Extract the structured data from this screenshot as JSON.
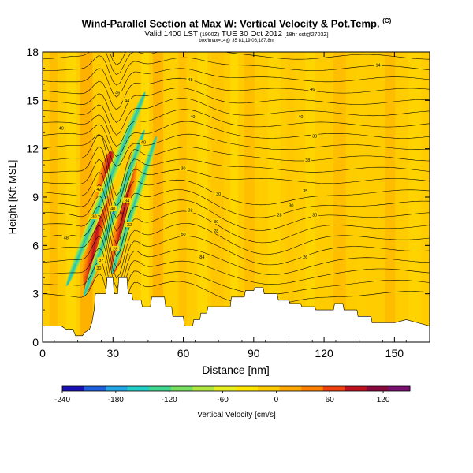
{
  "header": {
    "title": "Wind-Parallel Section at Max W: Vertical Velocity & Pot.Temp.",
    "title_mark": "(C)",
    "valid_main": "Valid 1400 LST",
    "valid_small1": "(1900Z)",
    "valid_date": "TUE 30 Oct 2012",
    "valid_small2": "[18hr cst@2703Z]",
    "line3": "box/lmax=14@ 35 81,19.06,187.8m"
  },
  "chart_data": {
    "type": "heatmap",
    "xlabel": "Distance [nm]",
    "ylabel": "Height [Kft MSL]",
    "xlim": [
      0,
      165
    ],
    "ylim": [
      0,
      18
    ],
    "xticks": [
      0,
      30,
      60,
      90,
      120,
      150
    ],
    "yticks": [
      0,
      3,
      6,
      9,
      12,
      15,
      18
    ],
    "colorbar": {
      "label": "Vertical Velocity [cm/s]",
      "ticks": [
        -240,
        -180,
        -120,
        -60,
        0,
        60,
        120
      ],
      "range": [
        -240,
        150
      ],
      "colors": [
        "#1a10b8",
        "#1e5fe0",
        "#22a6e8",
        "#20d0c8",
        "#40d890",
        "#78e060",
        "#b0e840",
        "#e8f020",
        "#ffe600",
        "#ffcc00",
        "#ffa800",
        "#ff8000",
        "#f04010",
        "#c01020",
        "#8a0a40",
        "#7a1070"
      ]
    },
    "terrain_kft": [
      [
        0,
        1.0
      ],
      [
        8,
        1.0
      ],
      [
        10,
        0.8
      ],
      [
        13,
        0.8
      ],
      [
        14,
        0.4
      ],
      [
        17,
        0.4
      ],
      [
        18,
        0.6
      ],
      [
        20,
        0.8
      ],
      [
        21,
        1.2
      ],
      [
        22,
        2.0
      ],
      [
        22.5,
        3.0
      ],
      [
        27,
        3.0
      ],
      [
        27.5,
        4.0
      ],
      [
        30,
        4.0
      ],
      [
        30.5,
        3.0
      ],
      [
        32,
        3.0
      ],
      [
        32.5,
        4.0
      ],
      [
        36,
        4.0
      ],
      [
        36.5,
        3.0
      ],
      [
        38,
        3.0
      ],
      [
        38.5,
        2.6
      ],
      [
        42,
        2.6
      ],
      [
        42.5,
        2.2
      ],
      [
        46,
        2.2
      ],
      [
        46.5,
        2.8
      ],
      [
        52,
        2.8
      ],
      [
        52.5,
        2.2
      ],
      [
        55,
        2.2
      ],
      [
        55.5,
        1.6
      ],
      [
        60,
        1.6
      ],
      [
        60.5,
        1.0
      ],
      [
        64,
        1.0
      ],
      [
        64.5,
        1.4
      ],
      [
        67,
        1.4
      ],
      [
        67.5,
        1.8
      ],
      [
        70,
        1.8
      ],
      [
        70.5,
        2.2
      ],
      [
        80,
        2.2
      ],
      [
        80.5,
        2.8
      ],
      [
        86,
        2.8
      ],
      [
        86.5,
        3.2
      ],
      [
        90,
        3.2
      ],
      [
        90.5,
        3.4
      ],
      [
        94,
        3.4
      ],
      [
        94.5,
        3.0
      ],
      [
        100,
        3.0
      ],
      [
        100.5,
        2.6
      ],
      [
        105,
        2.6
      ],
      [
        105.5,
        2.4
      ],
      [
        110,
        2.4
      ],
      [
        110.5,
        2.2
      ],
      [
        116,
        2.2
      ],
      [
        116.5,
        2.0
      ],
      [
        124,
        2.0
      ],
      [
        124.5,
        2.4
      ],
      [
        128,
        2.4
      ],
      [
        128.5,
        2.0
      ],
      [
        134,
        2.0
      ],
      [
        134.5,
        1.6
      ],
      [
        140,
        1.6
      ],
      [
        140.5,
        1.2
      ],
      [
        150,
        1.2
      ],
      [
        155,
        1.4
      ],
      [
        160,
        1.2
      ],
      [
        165,
        1.0
      ]
    ],
    "vertical_velocity_features": [
      {
        "x": 23,
        "y": 7,
        "value": 140
      },
      {
        "x": 34,
        "y": 8,
        "value": 140
      },
      {
        "x": 27,
        "y": 9,
        "value": -200
      },
      {
        "x": 30,
        "y": 8,
        "value": -220
      }
    ],
    "pot_temp_labels": [
      {
        "x": 143,
        "y": 17.2,
        "value": "14"
      },
      {
        "x": 63,
        "y": 16.3,
        "value": "48"
      },
      {
        "x": 115,
        "y": 15.7,
        "value": "46"
      },
      {
        "x": 32,
        "y": 15.5,
        "value": "46"
      },
      {
        "x": 36,
        "y": 15.0,
        "value": "44"
      },
      {
        "x": 64,
        "y": 14.0,
        "value": "40"
      },
      {
        "x": 110,
        "y": 14.0,
        "value": "40"
      },
      {
        "x": 8,
        "y": 13.3,
        "value": "40"
      },
      {
        "x": 43,
        "y": 12.4,
        "value": "40"
      },
      {
        "x": 116,
        "y": 12.8,
        "value": "38"
      },
      {
        "x": 113,
        "y": 11.3,
        "value": "38"
      },
      {
        "x": 60,
        "y": 10.8,
        "value": "30"
      },
      {
        "x": 75,
        "y": 9.2,
        "value": "30"
      },
      {
        "x": 112,
        "y": 9.4,
        "value": "35"
      },
      {
        "x": 63,
        "y": 8.2,
        "value": "32"
      },
      {
        "x": 106,
        "y": 8.5,
        "value": "30"
      },
      {
        "x": 101,
        "y": 7.9,
        "value": "28"
      },
      {
        "x": 116,
        "y": 7.9,
        "value": "30"
      },
      {
        "x": 74,
        "y": 7.5,
        "value": "30"
      },
      {
        "x": 74,
        "y": 6.9,
        "value": "28"
      },
      {
        "x": 60,
        "y": 6.7,
        "value": "50"
      },
      {
        "x": 68,
        "y": 5.3,
        "value": "84"
      },
      {
        "x": 112,
        "y": 5.3,
        "value": "26"
      },
      {
        "x": 10,
        "y": 6.5,
        "value": "48"
      },
      {
        "x": 24,
        "y": 9.5,
        "value": "42"
      },
      {
        "x": 30,
        "y": 8.3,
        "value": "40"
      },
      {
        "x": 22,
        "y": 7.8,
        "value": "30"
      },
      {
        "x": 25,
        "y": 5.1,
        "value": "37"
      },
      {
        "x": 24,
        "y": 4.6,
        "value": "30"
      },
      {
        "x": 36,
        "y": 8.8,
        "value": "34"
      },
      {
        "x": 37,
        "y": 7.3,
        "value": "32"
      },
      {
        "x": 31,
        "y": 5.8,
        "value": "28"
      }
    ]
  }
}
